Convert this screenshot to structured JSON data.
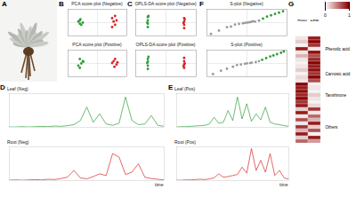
{
  "photo": {
    "panel": "A"
  },
  "chart_data": [
    {
      "panel": "B",
      "type": "scatter",
      "title": "PCA score plot (Negative)",
      "xlim": [
        -10,
        10
      ],
      "ylim": [
        -6,
        6
      ],
      "tick_labels": false,
      "series": [
        {
          "color": "#2e9e3a",
          "values": [
            [
              -6,
              1
            ],
            [
              -5.5,
              -1
            ],
            [
              -6.5,
              0.5
            ],
            [
              -5,
              0
            ],
            [
              -6,
              -0.5
            ],
            [
              -5.8,
              1.5
            ]
          ]
        },
        {
          "color": "#d62728",
          "values": [
            [
              5,
              2
            ],
            [
              6,
              -1
            ],
            [
              5.5,
              0.5
            ],
            [
              6.5,
              1
            ],
            [
              5,
              -2
            ],
            [
              6,
              3
            ]
          ]
        }
      ]
    },
    {
      "type": "scatter",
      "title": "PCA score plot (Positive)",
      "xlim": [
        -10,
        10
      ],
      "ylim": [
        -6,
        6
      ],
      "tick_labels": false,
      "series": [
        {
          "color": "#2e9e3a",
          "values": [
            [
              -6,
              2
            ],
            [
              -5,
              1
            ],
            [
              -6.5,
              -1
            ],
            [
              -5.5,
              0
            ],
            [
              -6,
              -2
            ],
            [
              -4.8,
              0.8
            ]
          ]
        },
        {
          "color": "#d62728",
          "values": [
            [
              5.5,
              1
            ],
            [
              6.5,
              -0.5
            ],
            [
              5,
              0.2
            ],
            [
              6,
              2
            ],
            [
              5.8,
              -1.5
            ],
            [
              6.8,
              0.5
            ]
          ]
        }
      ]
    },
    {
      "panel": "C",
      "type": "scatter",
      "title": "OPLS-DA score plot (Negative)",
      "xlim": [
        -10,
        10
      ],
      "ylim": [
        -6,
        6
      ],
      "tick_labels": false,
      "series": [
        {
          "color": "#2e9e3a",
          "values": [
            [
              -6,
              2.5
            ],
            [
              -6,
              1
            ],
            [
              -6,
              -0.5
            ],
            [
              -6,
              -2
            ],
            [
              -6.2,
              0
            ],
            [
              -5.8,
              3
            ]
          ]
        },
        {
          "color": "#d62728",
          "values": [
            [
              6,
              2
            ],
            [
              6,
              0.5
            ],
            [
              6,
              -1
            ],
            [
              6,
              -2.5
            ],
            [
              6.2,
              1.5
            ],
            [
              5.8,
              -0.2
            ]
          ]
        }
      ]
    },
    {
      "type": "scatter",
      "title": "OPLS-DA score plot (Positive)",
      "xlim": [
        -10,
        10
      ],
      "ylim": [
        -6,
        6
      ],
      "tick_labels": false,
      "series": [
        {
          "color": "#2e9e3a",
          "values": [
            [
              -6,
              2
            ],
            [
              -6,
              0.8
            ],
            [
              -6,
              -1
            ],
            [
              -6,
              -2.5
            ],
            [
              -6.2,
              0.2
            ],
            [
              -5.8,
              3
            ]
          ]
        },
        {
          "color": "#d62728",
          "values": [
            [
              6,
              2.5
            ],
            [
              6,
              1
            ],
            [
              6,
              -0.5
            ],
            [
              6,
              -2
            ],
            [
              6.2,
              0
            ],
            [
              5.8,
              -1.2
            ]
          ]
        }
      ]
    },
    {
      "panel": "F",
      "type": "scatter",
      "title": "S-plot (Negative)",
      "xlim": [
        -1,
        1
      ],
      "ylim": [
        -1,
        1
      ],
      "tick_labels": false,
      "series": [
        {
          "color": "#9a9a9a",
          "values": [
            [
              -0.9,
              -0.85
            ],
            [
              -0.7,
              -0.6
            ],
            [
              -0.5,
              -0.35
            ],
            [
              -0.4,
              -0.3
            ],
            [
              -0.3,
              -0.15
            ],
            [
              -0.2,
              -0.1
            ],
            [
              -0.1,
              -0.05
            ],
            [
              0,
              0
            ],
            [
              0.05,
              0.02
            ],
            [
              0.1,
              0.05
            ],
            [
              0.2,
              0.08
            ],
            [
              0.3,
              0.15
            ],
            [
              0.15,
              0.1
            ],
            [
              -0.05,
              -0.02
            ]
          ]
        },
        {
          "color": "#2e9e3a",
          "values": [
            [
              0.4,
              0.3
            ],
            [
              0.5,
              0.45
            ],
            [
              0.6,
              0.55
            ],
            [
              0.7,
              0.65
            ],
            [
              0.8,
              0.75
            ],
            [
              0.9,
              0.85
            ]
          ]
        }
      ]
    },
    {
      "type": "scatter",
      "title": "S-plot (Positive)",
      "xlim": [
        -1,
        1
      ],
      "ylim": [
        -1,
        1
      ],
      "tick_labels": false,
      "series": [
        {
          "color": "#9a9a9a",
          "values": [
            [
              -0.85,
              -0.8
            ],
            [
              -0.65,
              -0.55
            ],
            [
              -0.5,
              -0.4
            ],
            [
              -0.35,
              -0.25
            ],
            [
              -0.25,
              -0.12
            ],
            [
              -0.15,
              -0.08
            ],
            [
              -0.05,
              -0.03
            ],
            [
              0,
              0.01
            ],
            [
              0.08,
              0.03
            ],
            [
              0.12,
              0.06
            ],
            [
              0.22,
              0.1
            ],
            [
              0.3,
              0.18
            ]
          ]
        },
        {
          "color": "#2e9e3a",
          "values": [
            [
              0.38,
              0.28
            ],
            [
              0.48,
              0.4
            ],
            [
              0.58,
              0.52
            ],
            [
              0.66,
              0.6
            ],
            [
              0.75,
              0.7
            ],
            [
              0.85,
              0.8
            ],
            [
              0.92,
              0.9
            ]
          ]
        }
      ]
    },
    {
      "panel": "G",
      "type": "heatmap",
      "columns": [
        "Root",
        "Leaf"
      ],
      "cells": [
        [
          0.1,
          0.9
        ],
        [
          0.2,
          1
        ],
        [
          0.05,
          0.8
        ],
        [
          0.9,
          0.1
        ],
        [
          0.1,
          0.95
        ],
        [
          0.3,
          0.7
        ],
        [
          0.1,
          0.85
        ],
        [
          0.05,
          1
        ],
        [
          0.1,
          0.9
        ],
        [
          0.2,
          0.95
        ],
        [
          0.05,
          0.8
        ],
        [
          0.15,
          1
        ],
        [
          0.1,
          0.7
        ],
        [
          1,
          0.05
        ],
        [
          0.9,
          0.1
        ],
        [
          0.95,
          0.05
        ],
        [
          0.85,
          0.2
        ],
        [
          1,
          0.1
        ],
        [
          0.8,
          0.05
        ],
        [
          0.9,
          0.15
        ],
        [
          0.2,
          0.8
        ],
        [
          0.9,
          0.1
        ],
        [
          0.1,
          0.6
        ],
        [
          0.7,
          0.3
        ],
        [
          0.1,
          0.9
        ],
        [
          0.8,
          0.2
        ],
        [
          0.3,
          0.7
        ],
        [
          0.9,
          0.05
        ],
        [
          0.2,
          0.9
        ],
        [
          0.6,
          0.4
        ]
      ],
      "colorbar": {
        "range": [
          0,
          1
        ],
        "ticks": [
          0,
          1
        ]
      },
      "groups": [
        {
          "label": "Phenolic acid",
          "rows": [
            0,
            6
          ]
        },
        {
          "label": "Carnosic acid",
          "rows": [
            7,
            12
          ]
        },
        {
          "label": "Tanshinone",
          "rows": [
            13,
            19
          ]
        },
        {
          "label": "Others",
          "rows": [
            20,
            29
          ]
        }
      ]
    },
    {
      "panel": "D",
      "type": "line",
      "title": "Leaf (Neg)",
      "color": "#2e9e3a",
      "xlim": [
        0,
        24
      ],
      "ylim": [
        0,
        100
      ],
      "tick_labels": false,
      "x": [
        0,
        1,
        2,
        3,
        4,
        5,
        6,
        7,
        8,
        9,
        10,
        11,
        12,
        13,
        14,
        15,
        16,
        17,
        18,
        19,
        20,
        21,
        22,
        23,
        24
      ],
      "values": [
        1,
        1,
        2,
        1,
        2,
        3,
        2,
        4,
        3,
        5,
        8,
        20,
        60,
        15,
        40,
        10,
        6,
        12,
        90,
        20,
        8,
        10,
        35,
        6,
        3
      ]
    },
    {
      "type": "line",
      "title": "Root (Neg)",
      "color": "#d62728",
      "xlim": [
        0,
        24
      ],
      "ylim": [
        0,
        100
      ],
      "tick_labels": false,
      "xlabel": "time",
      "x": [
        0,
        1,
        2,
        3,
        4,
        5,
        6,
        7,
        8,
        9,
        10,
        11,
        12,
        13,
        14,
        15,
        16,
        17,
        18,
        19,
        20,
        21,
        22,
        23,
        24
      ],
      "values": [
        1,
        2,
        1,
        2,
        3,
        2,
        4,
        3,
        6,
        10,
        30,
        8,
        5,
        12,
        20,
        15,
        80,
        70,
        18,
        25,
        50,
        10,
        6,
        4,
        2
      ]
    },
    {
      "panel": "E",
      "type": "line",
      "title": "Leaf (Pos)",
      "color": "#2e9e3a",
      "xlim": [
        0,
        24
      ],
      "ylim": [
        0,
        100
      ],
      "tick_labels": false,
      "x": [
        0,
        1,
        2,
        3,
        4,
        5,
        6,
        7,
        8,
        9,
        10,
        11,
        12,
        13,
        14,
        15,
        16,
        17,
        18,
        19,
        20,
        21,
        22,
        23,
        24
      ],
      "values": [
        1,
        2,
        2,
        3,
        4,
        5,
        6,
        10,
        30,
        12,
        15,
        50,
        20,
        90,
        25,
        70,
        18,
        40,
        22,
        60,
        15,
        10,
        8,
        5,
        3
      ]
    },
    {
      "type": "line",
      "title": "Root (Pos)",
      "color": "#d62728",
      "xlim": [
        0,
        24
      ],
      "ylim": [
        0,
        100
      ],
      "tick_labels": false,
      "xlabel": "time",
      "x": [
        0,
        1,
        2,
        3,
        4,
        5,
        6,
        7,
        8,
        9,
        10,
        11,
        12,
        13,
        14,
        15,
        16,
        17,
        18,
        19,
        20,
        21,
        22,
        23,
        24
      ],
      "values": [
        1,
        1,
        2,
        2,
        3,
        4,
        3,
        5,
        8,
        20,
        10,
        12,
        15,
        18,
        40,
        22,
        95,
        30,
        60,
        25,
        80,
        15,
        30,
        8,
        4
      ]
    }
  ]
}
